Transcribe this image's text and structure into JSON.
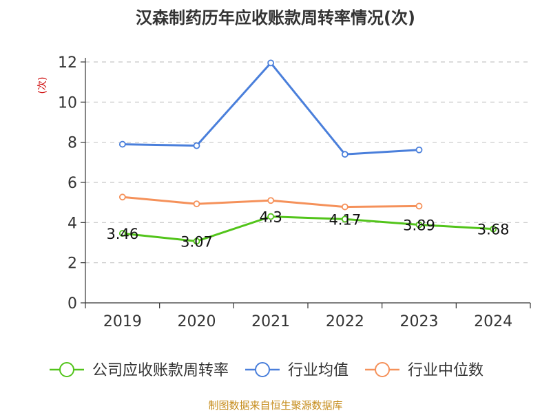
{
  "chart_data": {
    "type": "line",
    "title": "汉森制药历年应收账款周转率情况(次)",
    "ylabel": "(次)",
    "xlabel": "",
    "categories": [
      "2019",
      "2020",
      "2021",
      "2022",
      "2023",
      "2024"
    ],
    "ylim": [
      0,
      12
    ],
    "yticks": [
      0,
      2,
      4,
      6,
      8,
      10,
      12
    ],
    "grid": true,
    "legend_position": "bottom",
    "series": [
      {
        "name": "公司应收账款周转率",
        "color": "#52c41a",
        "values": [
          3.46,
          3.07,
          4.3,
          4.17,
          3.89,
          3.68
        ],
        "labels": [
          "3.46",
          "3.07",
          "4.3",
          "4.17",
          "3.89",
          "3.68"
        ],
        "show_labels": true
      },
      {
        "name": "行业均值",
        "color": "#4a7fdb",
        "values": [
          7.9,
          7.83,
          11.95,
          7.4,
          7.62,
          null
        ],
        "show_labels": false
      },
      {
        "name": "行业中位数",
        "color": "#f5915a",
        "values": [
          5.27,
          4.93,
          5.1,
          4.78,
          4.82,
          null
        ],
        "show_labels": false
      }
    ],
    "source": "制图数据来自恒生聚源数据库"
  }
}
